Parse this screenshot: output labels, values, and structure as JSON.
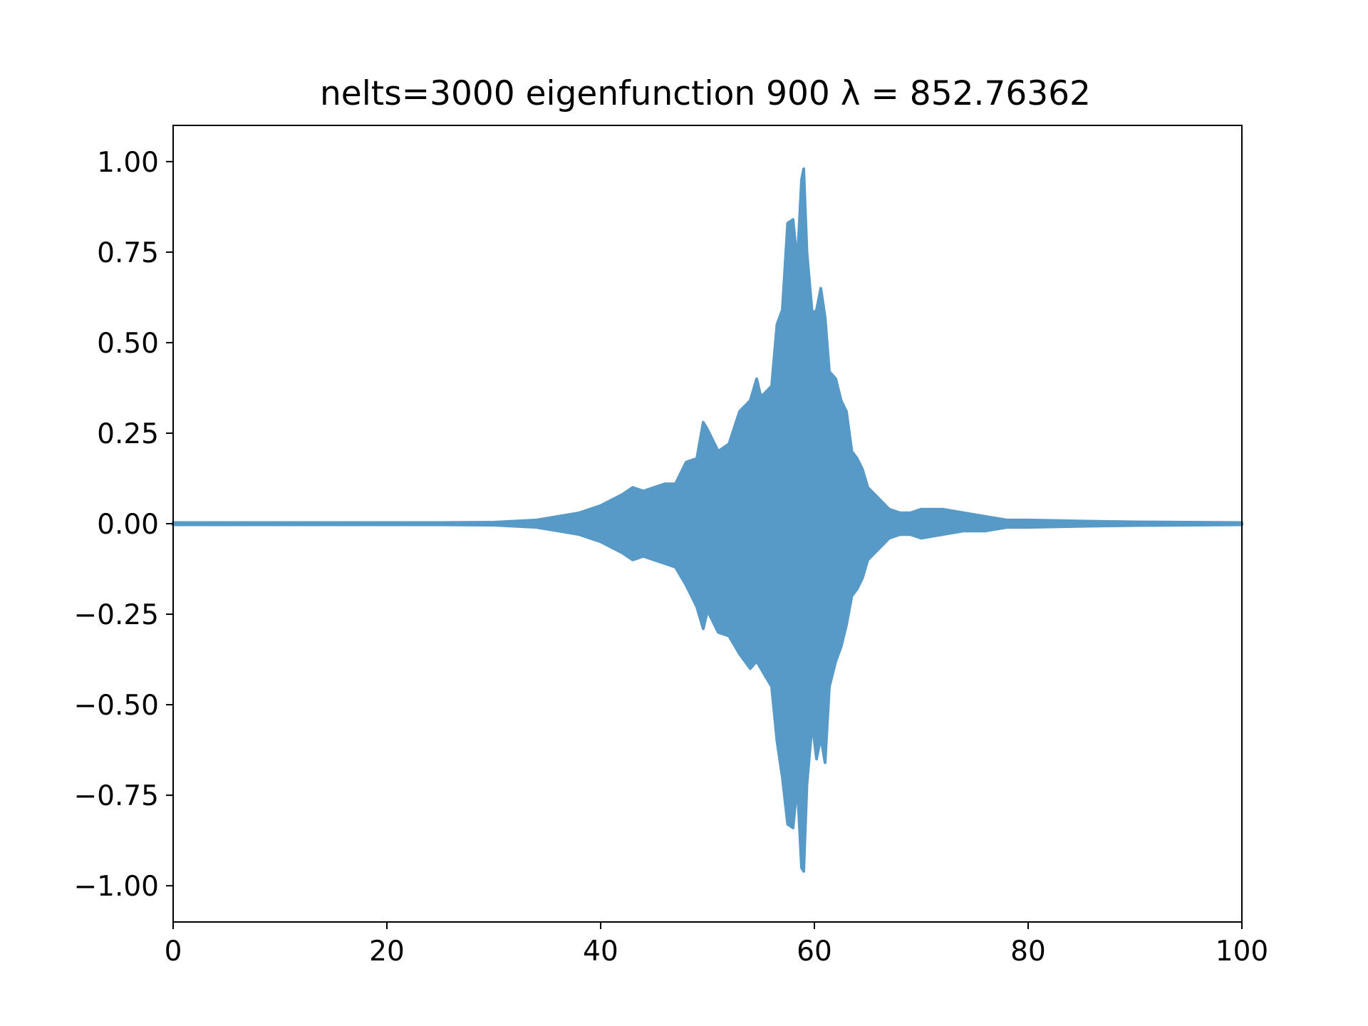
{
  "chart_data": {
    "type": "line",
    "title": "nelts=3000  eigenfunction 900  λ = 852.76362",
    "xlabel": "",
    "ylabel": "",
    "xlim": [
      0,
      100
    ],
    "ylim": [
      -1.1,
      1.1
    ],
    "grid": false,
    "legend": "none",
    "colors": {
      "series": "#5799c7",
      "axes": "#000000",
      "background": "#ffffff"
    },
    "xticks": [
      {
        "value": 0,
        "label": "0"
      },
      {
        "value": 20,
        "label": "20"
      },
      {
        "value": 40,
        "label": "40"
      },
      {
        "value": 60,
        "label": "60"
      },
      {
        "value": 80,
        "label": "80"
      },
      {
        "value": 100,
        "label": "100"
      }
    ],
    "yticks": [
      {
        "value": 1.0,
        "label": "1.00"
      },
      {
        "value": 0.75,
        "label": "0.75"
      },
      {
        "value": 0.5,
        "label": "0.50"
      },
      {
        "value": 0.25,
        "label": "0.25"
      },
      {
        "value": 0.0,
        "label": "0.00"
      },
      {
        "value": -0.25,
        "label": "−0.25"
      },
      {
        "value": -0.5,
        "label": "−0.50"
      },
      {
        "value": -0.75,
        "label": "−0.75"
      },
      {
        "value": -1.0,
        "label": "−1.00"
      }
    ],
    "series": [
      {
        "style": "rapid oscillation; envelope shown as upper/lower extremes",
        "envelope": {
          "x": [
            0,
            25,
            30,
            34,
            36,
            38,
            40,
            42,
            43,
            44,
            45,
            46,
            47,
            48,
            49,
            49.6,
            50,
            51,
            52,
            53,
            54,
            54.6,
            55,
            56,
            56.5,
            57,
            57.5,
            58,
            58.4,
            58.8,
            59.0,
            59.3,
            59.8,
            60.2,
            60.6,
            61,
            61.4,
            62,
            62.5,
            63,
            63.5,
            64,
            64.5,
            65,
            66,
            67,
            68,
            69,
            70,
            72,
            74,
            76,
            78,
            80,
            85,
            90,
            100
          ],
          "upper": [
            0.003,
            0.003,
            0.004,
            0.01,
            0.02,
            0.03,
            0.05,
            0.08,
            0.1,
            0.09,
            0.1,
            0.11,
            0.11,
            0.17,
            0.18,
            0.28,
            0.26,
            0.2,
            0.22,
            0.31,
            0.34,
            0.4,
            0.35,
            0.38,
            0.55,
            0.59,
            0.83,
            0.84,
            0.72,
            0.95,
            0.98,
            0.75,
            0.58,
            0.59,
            0.65,
            0.57,
            0.42,
            0.4,
            0.34,
            0.31,
            0.2,
            0.18,
            0.15,
            0.1,
            0.07,
            0.04,
            0.03,
            0.03,
            0.04,
            0.04,
            0.03,
            0.02,
            0.01,
            0.01,
            0.007,
            0.005,
            0.003
          ],
          "lower": [
            -0.003,
            -0.003,
            -0.004,
            -0.01,
            -0.02,
            -0.03,
            -0.05,
            -0.08,
            -0.1,
            -0.09,
            -0.1,
            -0.11,
            -0.12,
            -0.17,
            -0.23,
            -0.29,
            -0.24,
            -0.3,
            -0.31,
            -0.36,
            -0.4,
            -0.38,
            -0.4,
            -0.45,
            -0.6,
            -0.7,
            -0.83,
            -0.84,
            -0.72,
            -0.95,
            -0.96,
            -0.72,
            -0.55,
            -0.65,
            -0.59,
            -0.66,
            -0.45,
            -0.38,
            -0.34,
            -0.28,
            -0.2,
            -0.18,
            -0.15,
            -0.1,
            -0.07,
            -0.04,
            -0.03,
            -0.03,
            -0.04,
            -0.03,
            -0.02,
            -0.02,
            -0.01,
            -0.01,
            -0.007,
            -0.005,
            -0.003
          ]
        }
      }
    ]
  }
}
